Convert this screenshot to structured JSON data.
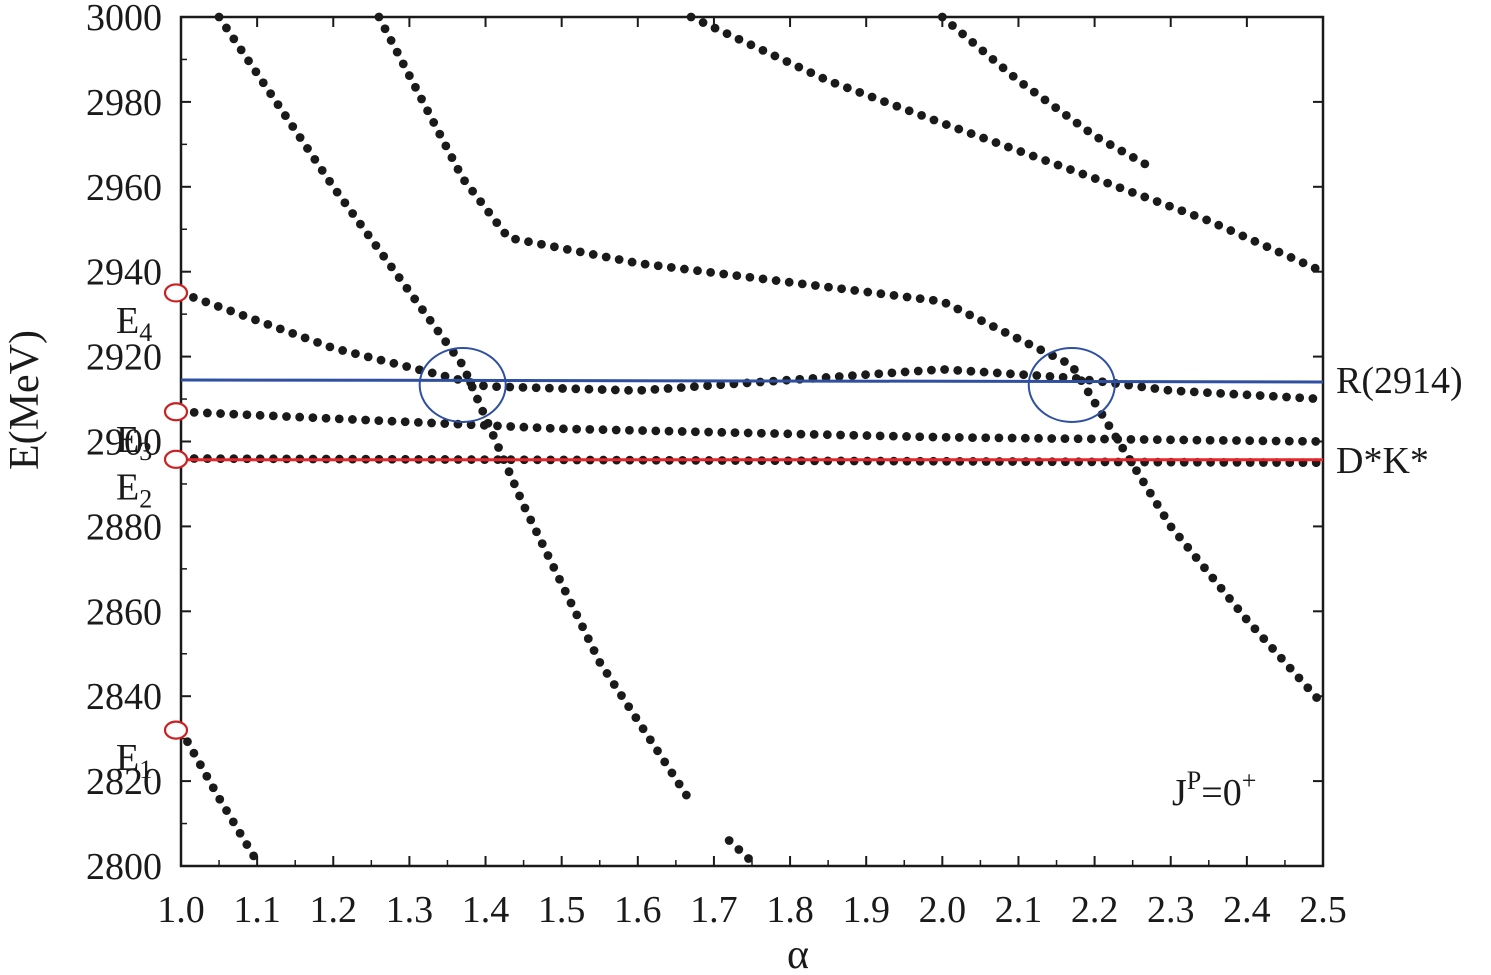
{
  "chart_data": {
    "type": "scatter",
    "title": "",
    "xlabel": "α",
    "ylabel": "E(MeV)",
    "xlim": [
      1.0,
      2.5
    ],
    "ylim": [
      2800,
      3000
    ],
    "x_ticks": [
      "1.0",
      "1.1",
      "1.2",
      "1.3",
      "1.4",
      "1.5",
      "1.6",
      "1.7",
      "1.8",
      "1.9",
      "2.0",
      "2.1",
      "2.2",
      "2.3",
      "2.4",
      "2.5"
    ],
    "y_ticks": [
      "2800",
      "2820",
      "2840",
      "2860",
      "2880",
      "2900",
      "2920",
      "2940",
      "2960",
      "2980",
      "3000"
    ],
    "grid": false,
    "series": [
      {
        "x_range": [
          1.0,
          1.1
        ],
        "y": [
          [
            1.0,
            2832
          ],
          [
            1.05,
            2816
          ],
          [
            1.1,
            2801
          ]
        ]
      },
      {
        "x_range": [
          1.05,
          1.67
        ],
        "y": [
          [
            1.05,
            3000
          ],
          [
            1.2,
            2960
          ],
          [
            1.37,
            2918
          ],
          [
            1.45,
            2885
          ],
          [
            1.55,
            2848
          ],
          [
            1.67,
            2815
          ]
        ]
      },
      {
        "x_range": [
          1.72,
          1.75
        ],
        "y": [
          [
            1.72,
            2806
          ],
          [
            1.75,
            2801
          ]
        ]
      },
      {
        "x_range": [
          1.26,
          2.5
        ],
        "y": [
          [
            1.26,
            3000
          ],
          [
            1.37,
            2962
          ],
          [
            1.43,
            2948
          ],
          [
            1.6,
            2942
          ],
          [
            2.0,
            2933
          ],
          [
            2.17,
            2918
          ],
          [
            2.3,
            2880
          ],
          [
            2.4,
            2858
          ],
          [
            2.5,
            2838
          ]
        ]
      },
      {
        "x_range": [
          1.67,
          2.5
        ],
        "y": [
          [
            1.67,
            3000
          ],
          [
            1.85,
            2985
          ],
          [
            2.0,
            2975
          ],
          [
            2.2,
            2962
          ],
          [
            2.35,
            2952
          ],
          [
            2.5,
            2940
          ]
        ]
      },
      {
        "x_range": [
          2.0,
          2.27
        ],
        "y": [
          [
            2.0,
            3000
          ],
          [
            2.1,
            2985
          ],
          [
            2.2,
            2972
          ],
          [
            2.27,
            2965
          ]
        ]
      },
      {
        "x_range": [
          1.0,
          2.5
        ],
        "y": [
          [
            1.0,
            2935
          ],
          [
            1.2,
            2922
          ],
          [
            1.4,
            2913
          ],
          [
            1.6,
            2912
          ],
          [
            2.0,
            2917
          ],
          [
            2.17,
            2915
          ],
          [
            2.3,
            2912
          ],
          [
            2.5,
            2910
          ]
        ]
      },
      {
        "x_range": [
          1.0,
          2.5
        ],
        "y": [
          [
            1.0,
            2907
          ],
          [
            1.5,
            2903
          ],
          [
            2.0,
            2901
          ],
          [
            2.5,
            2900
          ]
        ]
      },
      {
        "x_range": [
          1.0,
          2.5
        ],
        "y": [
          [
            1.0,
            2896
          ],
          [
            2.5,
            2895
          ]
        ]
      }
    ],
    "lines": [
      {
        "name": "R(2914)",
        "y": 2914.5,
        "color": "#2f4fa0"
      },
      {
        "name": "D*K*",
        "y": 2895.7,
        "color": "#e8252b"
      }
    ],
    "markers": [
      {
        "label": "E",
        "sub": "4",
        "y": 2935
      },
      {
        "label": "E",
        "sub": "3",
        "y": 2907
      },
      {
        "label": "E",
        "sub": "2",
        "y": 2895.8
      },
      {
        "label": "E",
        "sub": "1",
        "y": 2832
      }
    ],
    "circles": [
      {
        "x": 1.37,
        "y": 2914.5
      },
      {
        "x": 2.17,
        "y": 2914.5
      }
    ],
    "annotation": {
      "text": "J",
      "sup": "P",
      "rest": "=0",
      "rest_sup": "+"
    }
  },
  "colors": {
    "dots": "#1a1a1a",
    "axis": "#1a1a1a",
    "circle": "#2f4fa0",
    "marker": "#cc2020"
  }
}
